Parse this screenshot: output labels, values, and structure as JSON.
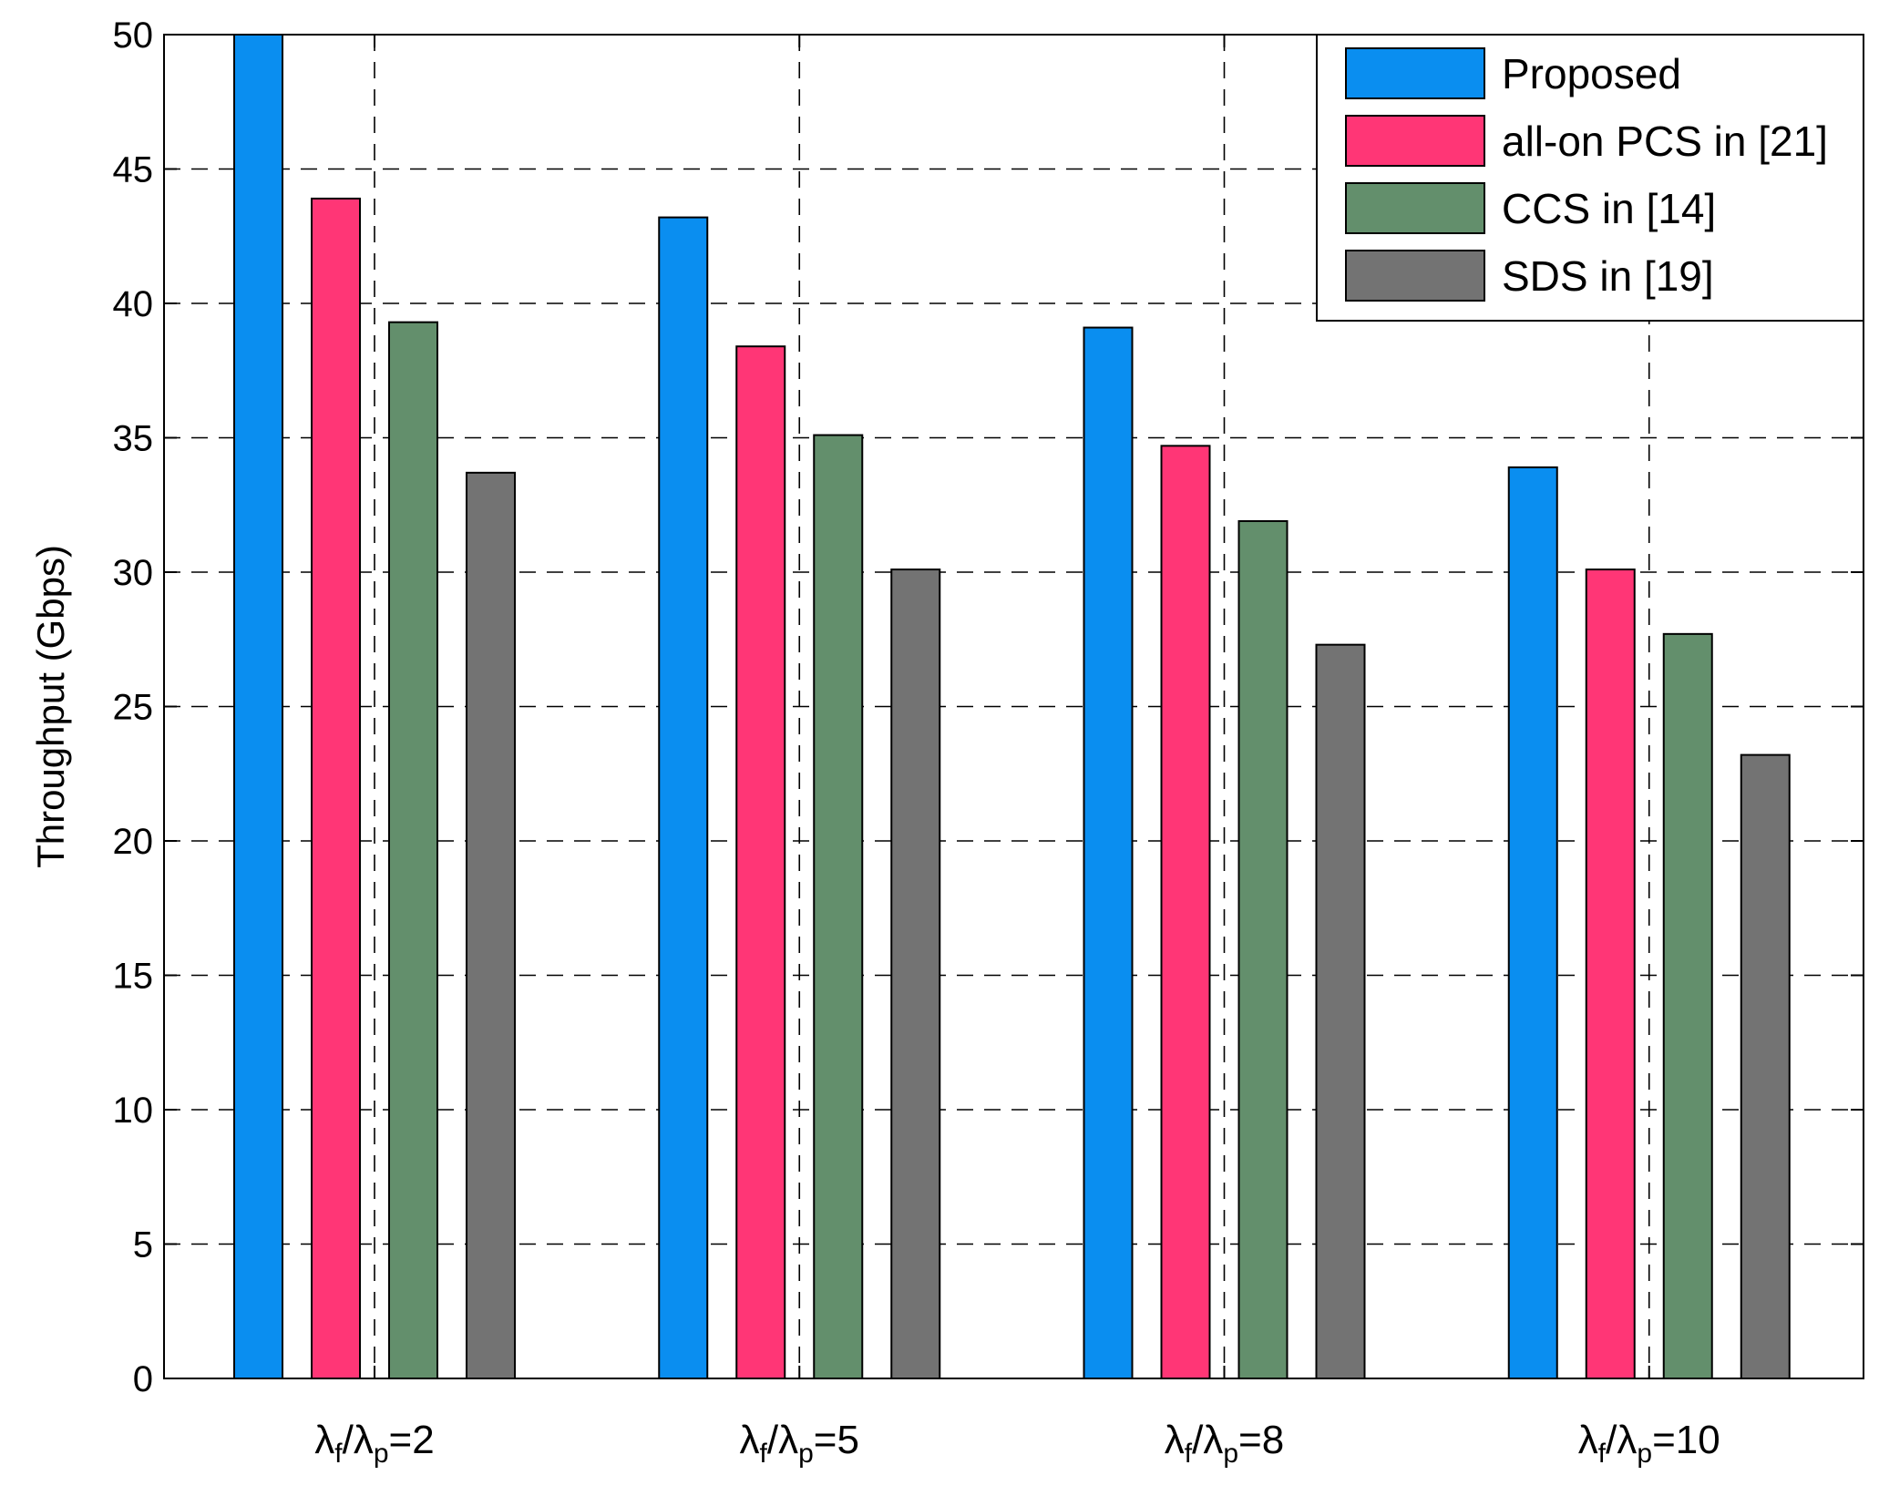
{
  "chart_data": {
    "type": "bar",
    "title": "",
    "xlabel": "",
    "ylabel": "Throughput (Gbps)",
    "ylim": [
      0,
      50
    ],
    "yticks": [
      0,
      5,
      10,
      15,
      20,
      25,
      30,
      35,
      40,
      45,
      50
    ],
    "grid": true,
    "legend_position": "top-right",
    "categories": [
      {
        "lead": "λ",
        "sub1": "f",
        "mid": "/λ",
        "sub2": "p",
        "tail": "=2"
      },
      {
        "lead": "λ",
        "sub1": "f",
        "mid": "/λ",
        "sub2": "p",
        "tail": "=5"
      },
      {
        "lead": "λ",
        "sub1": "f",
        "mid": "/λ",
        "sub2": "p",
        "tail": "=8"
      },
      {
        "lead": "λ",
        "sub1": "f",
        "mid": "/λ",
        "sub2": "p",
        "tail": "=10"
      }
    ],
    "series": [
      {
        "name": "Proposed",
        "color": "#0a8ef0",
        "values": [
          50.0,
          43.2,
          39.1,
          33.9
        ]
      },
      {
        "name": "all-on PCS in [21]",
        "color": "#ff3676",
        "values": [
          43.9,
          38.4,
          34.7,
          30.1
        ]
      },
      {
        "name": "CCS in [14]",
        "color": "#638f6c",
        "values": [
          39.3,
          35.1,
          31.9,
          27.7
        ]
      },
      {
        "name": "SDS in [19]",
        "color": "#737373",
        "values": [
          33.7,
          30.1,
          27.3,
          23.2
        ]
      }
    ]
  }
}
